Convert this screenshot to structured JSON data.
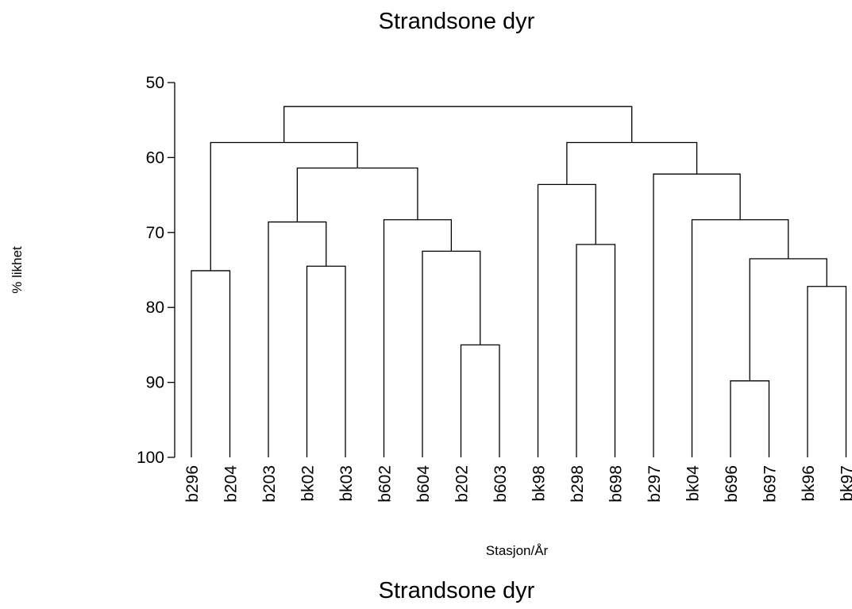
{
  "chart_data": {
    "type": "dendrogram",
    "title": "Strandsone dyr",
    "footer_title": "Strandsone dyr",
    "xlabel": "Stasjon/År",
    "ylabel": "% likhet",
    "y_ticks": [
      "50",
      "60",
      "70",
      "80",
      "90",
      "100"
    ],
    "ylim": [
      50,
      100
    ],
    "leaves": [
      "b296",
      "b204",
      "b203",
      "bk02",
      "bk03",
      "b602",
      "b604",
      "b202",
      "b603",
      "bk98",
      "b298",
      "b698",
      "b297",
      "bk04",
      "b696",
      "b697",
      "bk96",
      "bk97"
    ],
    "merges": [
      {
        "a": "b696",
        "b": "b697",
        "height": 89.8
      },
      {
        "a": "b202",
        "b": "b603",
        "height": 85.0
      },
      {
        "a": "bk96",
        "b": "bk97",
        "height": 77.2
      },
      {
        "a": "b296",
        "b": "b204",
        "height": 75.1
      },
      {
        "a": "bk02",
        "b": "bk03",
        "height": 74.5
      },
      {
        "a": "b696+b697",
        "b": "bk96+bk97",
        "height": 73.5
      },
      {
        "a": "b604",
        "b": "b202+b603",
        "height": 72.5
      },
      {
        "a": "b298",
        "b": "b698",
        "height": 71.6
      },
      {
        "a": "b203",
        "b": "bk02+bk03",
        "height": 68.6
      },
      {
        "a": "b602",
        "b": "b604+b202+b603",
        "height": 68.3
      },
      {
        "a": "bk04",
        "b": "b696+b697+bk96+bk97",
        "height": 68.3
      },
      {
        "a": "bk98",
        "b": "b298+b698",
        "height": 63.6
      },
      {
        "a": "b297",
        "b": "bk04+b696+b697+bk96+bk97",
        "height": 62.2
      },
      {
        "a": "b203+bk02+bk03",
        "b": "b602+b604+b202+b603",
        "height": 61.4
      },
      {
        "a": "b296+b204",
        "b": "b203+bk02+bk03+b602+b604+b202+b603",
        "height": 58.0
      },
      {
        "a": "bk98+b298+b698",
        "b": "b297+bk04+b696+b697+bk96+bk97",
        "height": 58.0
      },
      {
        "a": "b296+b204+b203+bk02+bk03+b602+b604+b202+b603",
        "b": "bk98+b298+b698+b297+bk04+b696+b697+bk96+bk97",
        "height": 53.2
      }
    ]
  }
}
